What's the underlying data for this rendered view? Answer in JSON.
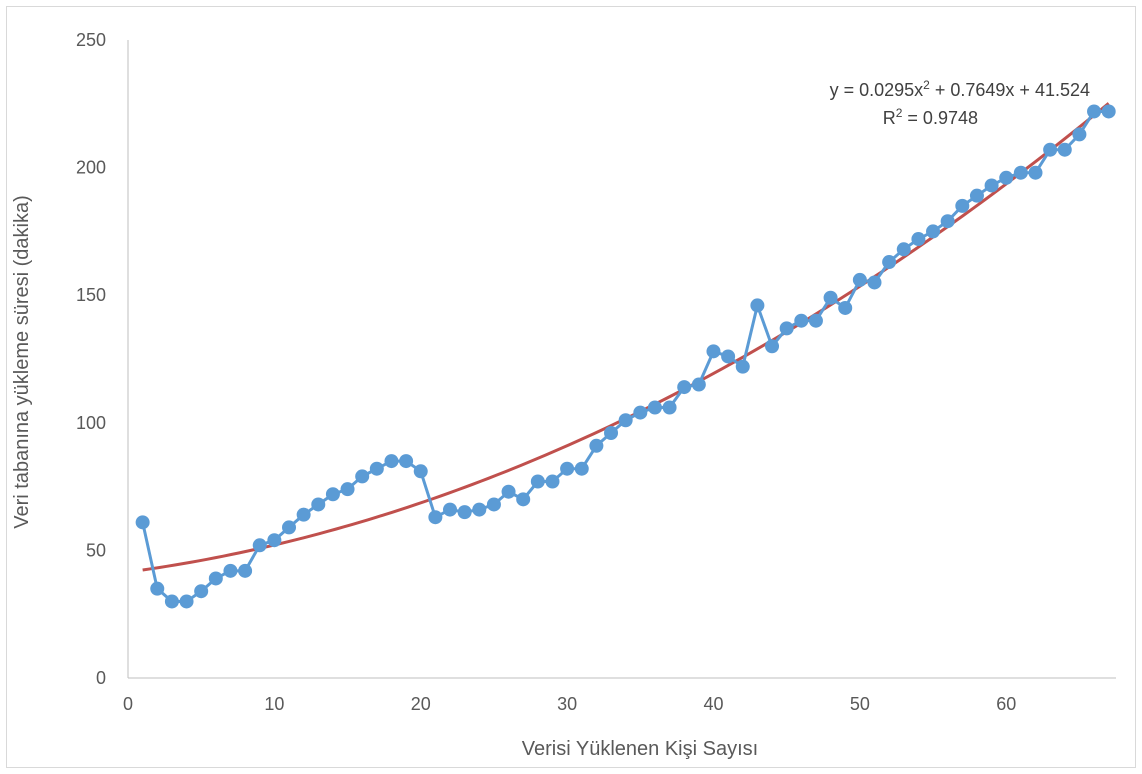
{
  "chart_data": {
    "type": "scatter",
    "title": "",
    "xlabel": "Verisi Yüklenen Kişi Sayısı",
    "ylabel": "Veri tabanına yükleme süresi (dakika)",
    "xlim": [
      0,
      67.5
    ],
    "ylim": [
      0,
      250
    ],
    "xticks": [
      0,
      10,
      20,
      30,
      40,
      50,
      60
    ],
    "yticks": [
      0,
      50,
      100,
      150,
      200,
      250
    ],
    "grid": false,
    "legend": "none",
    "series": [
      {
        "type": "line-markers",
        "color": "#5B9BD5",
        "x": [
          1,
          2,
          3,
          4,
          5,
          6,
          7,
          8,
          9,
          10,
          11,
          12,
          13,
          14,
          15,
          16,
          17,
          18,
          19,
          20,
          21,
          22,
          23,
          24,
          25,
          26,
          27,
          28,
          29,
          30,
          31,
          32,
          33,
          34,
          35,
          36,
          37,
          38,
          39,
          40,
          41,
          42,
          43,
          44,
          45,
          46,
          47,
          48,
          49,
          50,
          51,
          52,
          53,
          54,
          55,
          56,
          57,
          58,
          59,
          60,
          61,
          62,
          63,
          64,
          65,
          66,
          67
        ],
        "y": [
          61,
          35,
          30,
          30,
          34,
          39,
          42,
          42,
          52,
          54,
          59,
          64,
          68,
          72,
          74,
          79,
          82,
          85,
          85,
          81,
          63,
          66,
          65,
          66,
          68,
          73,
          70,
          77,
          77,
          82,
          82,
          91,
          96,
          101,
          104,
          106,
          106,
          114,
          115,
          128,
          126,
          122,
          146,
          130,
          137,
          140,
          140,
          149,
          145,
          156,
          155,
          163,
          168,
          172,
          175,
          179,
          185,
          189,
          193,
          196,
          198,
          198,
          207,
          207,
          213,
          222,
          222
        ]
      },
      {
        "type": "trendline",
        "color": "#C0504D",
        "model": "polynomial-2",
        "coefficients": [
          0.0295,
          0.7649,
          41.524
        ],
        "x_range": [
          1,
          67
        ]
      }
    ],
    "annotations": {
      "equation_line1_prefix": "y = 0.0295x",
      "equation_line1_sup": "2",
      "equation_line1_suffix": " + 0.7649x + 41.524",
      "equation_line2_prefix": "R",
      "equation_line2_sup": "2",
      "equation_line2_suffix": " = 0.9748"
    }
  }
}
